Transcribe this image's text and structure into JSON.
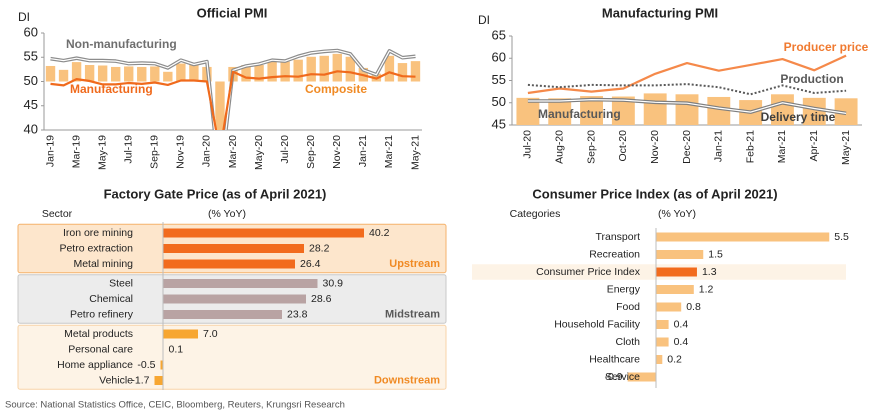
{
  "chart_data": [
    {
      "type": "combo",
      "title": "Official PMI",
      "y_label": "DI",
      "categories": [
        "Jan-19",
        null,
        "Mar-19",
        null,
        "May-19",
        null,
        "Jul-19",
        null,
        "Sep-19",
        null,
        "Nov-19",
        null,
        "Jan-20",
        null,
        "Mar-20",
        null,
        "May-20",
        null,
        "Jul-20",
        null,
        "Sep-20",
        null,
        "Nov-20",
        null,
        "Jan-21",
        null,
        "Mar-21",
        null,
        "May-21"
      ],
      "ylim": [
        40,
        60
      ],
      "yticks": [
        40,
        45,
        50,
        55,
        60
      ],
      "baseline": 50,
      "series": [
        {
          "name": "Composite",
          "style": "bar",
          "color": "#f9c27e",
          "label_color": "#f08a24",
          "values": [
            53.2,
            52.4,
            54.0,
            53.4,
            53.3,
            53.0,
            53.1,
            53.0,
            53.1,
            52.0,
            53.7,
            53.4,
            53.0,
            28.9,
            53.0,
            53.4,
            53.4,
            54.2,
            54.1,
            54.5,
            55.1,
            55.3,
            55.7,
            55.1,
            52.8,
            51.6,
            55.3,
            53.8,
            54.2
          ]
        },
        {
          "name": "Non-manufacturing",
          "style": "double",
          "color": "#8c8c8c",
          "label_color": "#6f6f6f",
          "values": [
            54.7,
            54.3,
            54.8,
            54.3,
            54.3,
            54.2,
            53.7,
            53.8,
            53.7,
            52.8,
            54.4,
            53.5,
            54.1,
            29.6,
            52.3,
            53.2,
            53.6,
            54.4,
            54.2,
            55.2,
            55.9,
            56.2,
            56.4,
            55.7,
            52.4,
            51.4,
            56.3,
            54.9,
            55.2
          ]
        },
        {
          "name": "Manufacturing",
          "style": "line",
          "color": "#f06a1c",
          "label_color": "#f06a1c",
          "values": [
            49.5,
            49.2,
            50.5,
            50.1,
            49.4,
            49.4,
            49.7,
            49.5,
            49.8,
            49.3,
            50.2,
            50.2,
            50.0,
            35.7,
            52.0,
            50.8,
            50.6,
            50.9,
            51.1,
            51.0,
            51.5,
            51.4,
            52.1,
            51.9,
            51.3,
            50.6,
            51.9,
            51.1,
            51.0
          ]
        }
      ]
    },
    {
      "type": "combo",
      "title": "Manufacturing PMI",
      "y_label": "DI",
      "categories": [
        "Jul-20",
        "Aug-20",
        "Sep-20",
        "Oct-20",
        "Nov-20",
        "Dec-20",
        "Jan-21",
        "Feb-21",
        "Mar-21",
        "Apr-21",
        "May-21"
      ],
      "ylim": [
        45,
        65
      ],
      "yticks": [
        45,
        50,
        55,
        60,
        65
      ],
      "series": [
        {
          "name": "Manufacturing",
          "style": "bar",
          "color": "#f9c27e",
          "label_color": "#595959",
          "values": [
            51.1,
            51.0,
            51.5,
            51.4,
            52.1,
            51.9,
            51.3,
            50.6,
            51.9,
            51.1,
            51.0
          ]
        },
        {
          "name": "Producer price",
          "style": "line",
          "color": "#f5894a",
          "label_color": "#f07a30",
          "values": [
            52.2,
            53.2,
            52.5,
            53.2,
            56.5,
            58.9,
            57.2,
            58.5,
            59.8,
            57.3,
            60.6
          ]
        },
        {
          "name": "Production",
          "style": "dotted",
          "color": "#595959",
          "label_color": "#595959",
          "values": [
            54.0,
            53.5,
            54.0,
            53.9,
            53.9,
            54.2,
            53.5,
            51.9,
            53.9,
            52.2,
            52.7
          ]
        },
        {
          "name": "Delivery time",
          "style": "double",
          "color": "#7f7f7f",
          "label_color": "#404040",
          "values": [
            50.4,
            50.4,
            50.7,
            50.6,
            50.1,
            49.9,
            48.8,
            47.9,
            50.0,
            48.7,
            47.6
          ]
        }
      ]
    },
    {
      "type": "hbar",
      "title": "Factory Gate Price (as of April 2021)",
      "category_header": "Sector",
      "value_header": "(% YoY)",
      "series": [
        {
          "name": "Upstream",
          "color": "#f26b1d",
          "background": "#fde6cc",
          "border": "#f5b26b",
          "categories": [
            "Iron ore mining",
            "Petro extraction",
            "Metal mining"
          ],
          "values": [
            40.2,
            28.2,
            26.4
          ]
        },
        {
          "name": "Midstream",
          "color": "#b9a3a3",
          "background": "#ececec",
          "border": "#c8c8c8",
          "categories": [
            "Steel",
            "Chemical",
            "Petro refinery"
          ],
          "values": [
            30.9,
            28.6,
            23.8
          ]
        },
        {
          "name": "Downstream",
          "color": "#f7a631",
          "background": "#fdf3e6",
          "border": "#f8d3a8",
          "categories": [
            "Metal products",
            "Personal care",
            "Home appliance",
            "Vehicle"
          ],
          "values": [
            7.0,
            0.1,
            -0.5,
            -1.7
          ],
          "value_labels": [
            "7.0",
            "0.1",
            "-0.5",
            "-1.7"
          ]
        }
      ]
    },
    {
      "type": "hbar",
      "title": "Consumer Price Index (as of April 2021)",
      "category_header": "Categories",
      "value_header": "(% YoY)",
      "categories": [
        "Transport",
        "Recreation",
        "Consumer Price Index",
        "Energy",
        "Food",
        "Household Facility",
        "Cloth",
        "Healthcare",
        "Service"
      ],
      "values": [
        5.5,
        1.5,
        1.3,
        1.2,
        0.8,
        0.4,
        0.4,
        0.2,
        -0.9
      ],
      "color": "#f9c27e",
      "colors": [
        "#f9c27e",
        "#f9c27e",
        "#f26b1d",
        "#f9c27e",
        "#f9c27e",
        "#f9c27e",
        "#f9c27e",
        "#f9c27e",
        "#f9c27e"
      ],
      "highlight_background": "#fdf3e6"
    }
  ],
  "source": "Source: National Statistics Office, CEIC, Bloomberg, Reuters, Krungsri Research"
}
